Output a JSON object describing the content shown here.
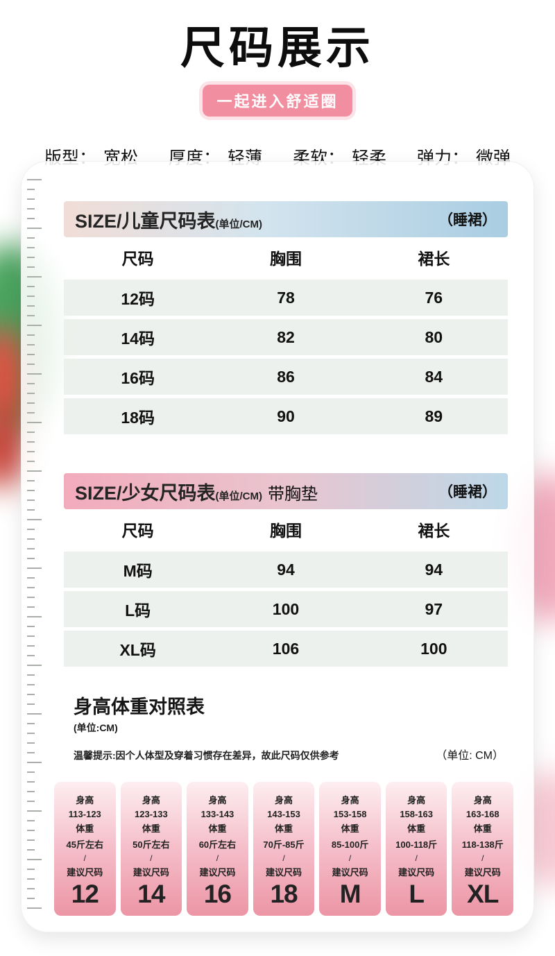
{
  "header": {
    "title": "尺码展示",
    "badge": "一起进入舒适圈",
    "attributes": [
      {
        "label": "版型：",
        "value": "宽松"
      },
      {
        "label": "厚度：",
        "value": "轻薄"
      },
      {
        "label": "柔软：",
        "value": "轻柔"
      },
      {
        "label": "弹力：",
        "value": "微弹"
      }
    ]
  },
  "tables": [
    {
      "title": "SIZE/儿童尺码表",
      "unit": "(单位/CM)",
      "suffix": "",
      "tag": "（睡裙）",
      "columns": [
        "尺码",
        "胸围",
        "裙长"
      ],
      "rows": [
        [
          "12码",
          "78",
          "76"
        ],
        [
          "14码",
          "82",
          "80"
        ],
        [
          "16码",
          "86",
          "84"
        ],
        [
          "18码",
          "90",
          "89"
        ]
      ]
    },
    {
      "title": "SIZE/少女尺码表",
      "unit": "(单位/CM)",
      "suffix": "带胸垫",
      "tag": "（睡裙）",
      "columns": [
        "尺码",
        "胸围",
        "裙长"
      ],
      "rows": [
        [
          "M码",
          "94",
          "94"
        ],
        [
          "L码",
          "100",
          "97"
        ],
        [
          "XL码",
          "106",
          "100"
        ]
      ]
    }
  ],
  "reference": {
    "title": "身高体重对照表",
    "unit_below": "(单位:CM)",
    "note": "温馨提示:因个人体型及穿着习惯存在差异，故此尺码仅供参考",
    "unit_right": "（单位: CM）",
    "cards": [
      {
        "height_label": "身高",
        "height": "113-123",
        "weight_label": "体重",
        "weight": "45斤左右",
        "slash": "/",
        "suggest_label": "建议尺码",
        "size": "12"
      },
      {
        "height_label": "身高",
        "height": "123-133",
        "weight_label": "体重",
        "weight": "50斤左右",
        "slash": "/",
        "suggest_label": "建议尺码",
        "size": "14"
      },
      {
        "height_label": "身高",
        "height": "133-143",
        "weight_label": "体重",
        "weight": "60斤左右",
        "slash": "/",
        "suggest_label": "建议尺码",
        "size": "16"
      },
      {
        "height_label": "身高",
        "height": "143-153",
        "weight_label": "体重",
        "weight": "70斤-85斤",
        "slash": "/",
        "suggest_label": "建议尺码",
        "size": "18"
      },
      {
        "height_label": "身高",
        "height": "153-158",
        "weight_label": "体重",
        "weight": "85-100斤",
        "slash": "/",
        "suggest_label": "建议尺码",
        "size": "M"
      },
      {
        "height_label": "身高",
        "height": "158-163",
        "weight_label": "体重",
        "weight": "100-118斤",
        "slash": "/",
        "suggest_label": "建议尺码",
        "size": "L"
      },
      {
        "height_label": "身高",
        "height": "163-168",
        "weight_label": "体重",
        "weight": "118-138斤",
        "slash": "/",
        "suggest_label": "建议尺码",
        "size": "XL"
      }
    ]
  },
  "colors": {
    "badge_pink": "#f18fa0",
    "table1_header_blue": "#a9cde2",
    "table2_header_pink": "#f2abbc",
    "row_shade": "#e8eee8",
    "size_card_top": "#fdeef1",
    "size_card_bottom": "#ec95a5"
  }
}
